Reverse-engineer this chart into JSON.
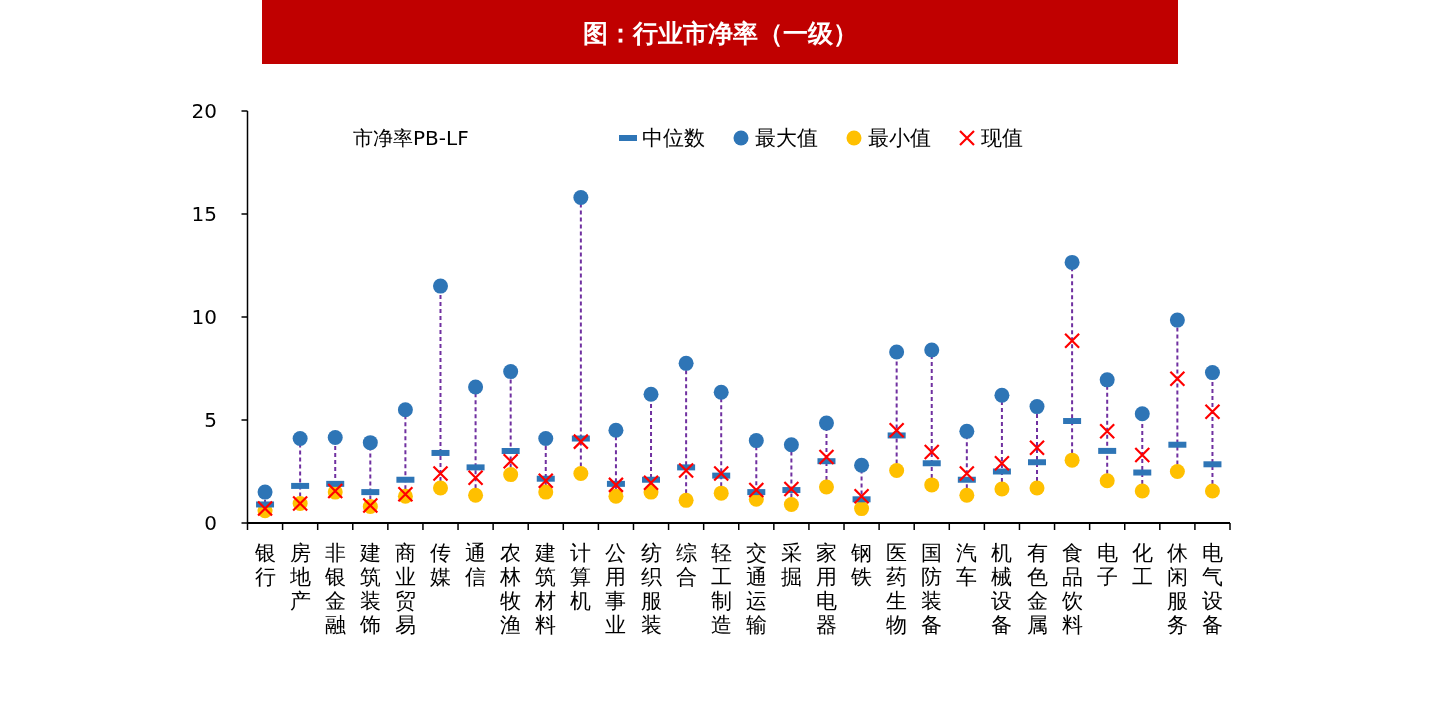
{
  "chart_data": {
    "type": "scatter",
    "title": "图：行业市净率（一级）",
    "legend_title": "市净率PB-LF",
    "legend": "top",
    "grid": false,
    "line_style": "dashed",
    "categories": [
      "银行",
      "房地产",
      "非银金融",
      "建筑装饰",
      "商业贸易",
      "传媒",
      "通信",
      "农林牧渔",
      "建筑材料",
      "计算机",
      "公用事业",
      "纺织服装",
      "综合",
      "轻工制造",
      "交通运输",
      "采掘",
      "家用电器",
      "钢铁",
      "医药生物",
      "国防装备",
      "汽车",
      "机械设备",
      "有色金属",
      "食品饮料",
      "电子",
      "化工",
      "休闲服务",
      "电气设备"
    ],
    "ylim": [
      0,
      20
    ],
    "yticks": [
      0,
      5,
      10,
      15,
      20
    ],
    "series": [
      {
        "name": "中位数",
        "color": "#2e75b6",
        "values": [
          0.9,
          1.8,
          1.9,
          1.5,
          2.1,
          3.4,
          2.7,
          3.5,
          2.15,
          4.1,
          1.9,
          2.1,
          2.7,
          2.3,
          1.5,
          1.6,
          3.0,
          1.15,
          4.25,
          2.9,
          2.1,
          2.5,
          2.95,
          4.95,
          3.5,
          2.45,
          3.8,
          2.85
        ]
      },
      {
        "name": "最大值",
        "color": "#2e75b6",
        "marker": "circle",
        "values": [
          1.5,
          4.1,
          4.15,
          3.9,
          5.5,
          11.5,
          6.6,
          7.35,
          4.1,
          15.8,
          4.5,
          6.25,
          7.75,
          6.35,
          4.0,
          3.8,
          4.85,
          2.8,
          8.3,
          8.4,
          4.45,
          6.2,
          5.65,
          12.65,
          6.95,
          5.3,
          9.85,
          7.3
        ]
      },
      {
        "name": "最小值",
        "color": "#ffc000",
        "marker": "circle",
        "values": [
          0.6,
          0.95,
          1.5,
          0.8,
          1.3,
          1.7,
          1.35,
          2.35,
          1.5,
          2.4,
          1.3,
          1.5,
          1.1,
          1.45,
          1.15,
          0.9,
          1.75,
          0.7,
          2.55,
          1.85,
          1.35,
          1.65,
          1.7,
          3.05,
          2.05,
          1.55,
          2.5,
          1.55
        ]
      },
      {
        "name": "现值",
        "color": "#ff0000",
        "marker": "cross",
        "values": [
          0.7,
          0.95,
          1.55,
          0.85,
          1.4,
          2.4,
          2.2,
          3.0,
          2.05,
          3.95,
          1.85,
          1.95,
          2.55,
          2.4,
          1.6,
          1.65,
          3.2,
          1.3,
          4.5,
          3.45,
          2.4,
          2.9,
          3.65,
          8.85,
          4.45,
          3.3,
          7.0,
          5.4
        ]
      }
    ]
  }
}
